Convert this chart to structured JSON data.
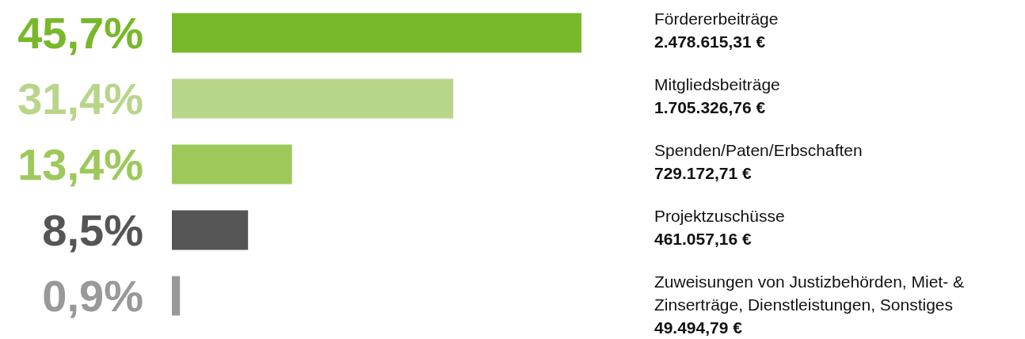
{
  "chart_data": {
    "type": "bar",
    "orientation": "horizontal",
    "categories": [
      "Fördererbeiträge",
      "Mitgliedsbeiträge",
      "Spenden/Paten/Erbschaften",
      "Projektzuschüsse",
      "Zuweisungen von Justizbehörden, Miet- & Zinserträge, Dienstleistungen, Sonstiges"
    ],
    "values": [
      45.7,
      31.4,
      13.4,
      8.5,
      0.9
    ],
    "colors": [
      "#78b82a",
      "#b8d68a",
      "#9cc95a",
      "#555555",
      "#999999"
    ],
    "value_labels": [
      "45,7%",
      "31,4%",
      "13,4%",
      "8,5%",
      "0,9%"
    ],
    "annotations": [
      "2.478.615,31 €",
      "1.705.326,76 €",
      "729.172,71 €",
      "461.057,16 €",
      "49.494,79 €"
    ]
  }
}
